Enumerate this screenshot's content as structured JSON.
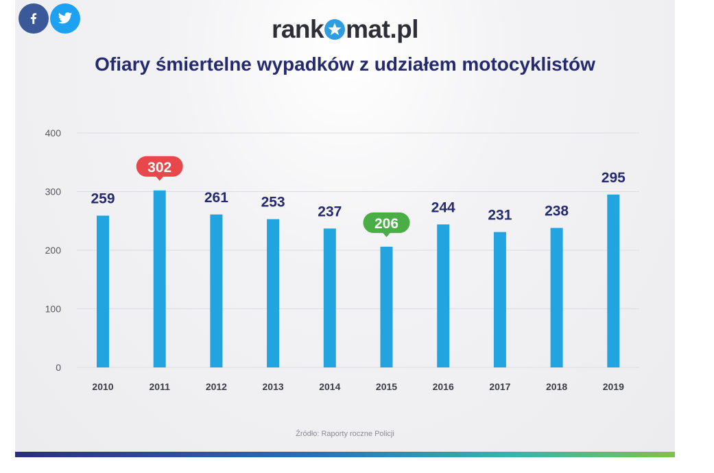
{
  "share": {
    "facebook_icon": "facebook-icon",
    "twitter_icon": "twitter-icon"
  },
  "logo": {
    "part1": "rank",
    "part2": "mat.pl"
  },
  "colors": {
    "bar": "#22a4e0",
    "max_badge": "#e8484b",
    "min_badge": "#4bad46",
    "value_label": "#252a6e",
    "grid": "#dcdce0"
  },
  "chart_data": {
    "type": "bar",
    "title": "Ofiary śmiertelne wypadków z udziałem motocyklistów",
    "categories": [
      "2010",
      "2011",
      "2012",
      "2013",
      "2014",
      "2015",
      "2016",
      "2017",
      "2018",
      "2019"
    ],
    "values": [
      259,
      302,
      261,
      253,
      237,
      206,
      244,
      231,
      238,
      295
    ],
    "value_labels": [
      "259",
      "302",
      "261",
      "253",
      "237",
      "206",
      "244",
      "231",
      "238",
      "295"
    ],
    "highlight": {
      "max_index": 1,
      "min_index": 5
    },
    "yticks": [
      "0",
      "100",
      "200",
      "300",
      "400"
    ],
    "ytick_values": [
      0,
      100,
      200,
      300,
      400
    ],
    "ylim": [
      0,
      400
    ],
    "xlabel": "",
    "ylabel": "",
    "grid": true,
    "legend": "none"
  },
  "source": "Źródło: Raporty roczne Policji"
}
